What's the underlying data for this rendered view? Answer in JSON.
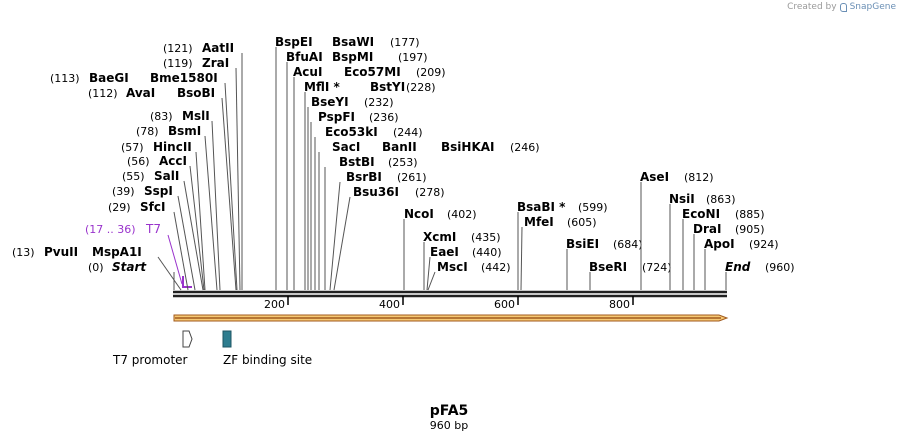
{
  "credit": {
    "prefix": "Created by",
    "brand": "SnapGene"
  },
  "sequence": {
    "name": "pFA5",
    "length_label": "960 bp",
    "length": 960
  },
  "axis_ticks": [
    "200",
    "400",
    "600",
    "800"
  ],
  "primer": {
    "name": "T7",
    "range": "(17 .. 36)",
    "color": "#9933cc"
  },
  "features": [
    {
      "name": "T7 promoter",
      "type": "promoter"
    },
    {
      "name": "ZF binding site",
      "type": "misc",
      "color": "#2e7d8f"
    }
  ],
  "colors": {
    "orf_fill": "#f6c873",
    "orf_stroke": "#a05a1e",
    "backbone": "#222222"
  },
  "enzymes": [
    {
      "pos": "(0)",
      "name": "Start",
      "italic": true
    },
    {
      "pos": "(13)",
      "name": "PvuII",
      "name2": "MspA1I"
    },
    {
      "pos": "(29)",
      "name": "SfcI"
    },
    {
      "pos": "(39)",
      "name": "SspI"
    },
    {
      "pos": "(55)",
      "name": "SalI"
    },
    {
      "pos": "(56)",
      "name": "AccI"
    },
    {
      "pos": "(57)",
      "name": "HincII"
    },
    {
      "pos": "(78)",
      "name": "BsmI"
    },
    {
      "pos": "(83)",
      "name": "MslI"
    },
    {
      "pos": "(112)",
      "name": "AvaI",
      "name2": "BsoBI"
    },
    {
      "pos": "(113)",
      "name": "BaeGI",
      "name2": "Bme1580I"
    },
    {
      "pos": "(119)",
      "name": "ZraI"
    },
    {
      "pos": "(121)",
      "name": "AatII"
    },
    {
      "pos": "(177)",
      "name": "BspEI",
      "name2": "BsaWI"
    },
    {
      "pos": "(197)",
      "name": "BfuAI",
      "name2": "BspMI"
    },
    {
      "pos": "(209)",
      "name": "AcuI",
      "name2": "Eco57MI"
    },
    {
      "pos": "(228)",
      "name": "MflI *",
      "name2": "BstYI"
    },
    {
      "pos": "(232)",
      "name": "BseYI"
    },
    {
      "pos": "(236)",
      "name": "PspFI"
    },
    {
      "pos": "(244)",
      "name": "Eco53kI"
    },
    {
      "pos": "(246)",
      "name": "SacI",
      "name2": "BanII",
      "name3": "BsiHKAI"
    },
    {
      "pos": "(253)",
      "name": "BstBI"
    },
    {
      "pos": "(261)",
      "name": "BsrBI"
    },
    {
      "pos": "(278)",
      "name": "Bsu36I"
    },
    {
      "pos": "(402)",
      "name": "NcoI"
    },
    {
      "pos": "(435)",
      "name": "XcmI"
    },
    {
      "pos": "(440)",
      "name": "EaeI"
    },
    {
      "pos": "(442)",
      "name": "MscI"
    },
    {
      "pos": "(599)",
      "name": "BsaBI *"
    },
    {
      "pos": "(605)",
      "name": "MfeI"
    },
    {
      "pos": "(684)",
      "name": "BsiEI"
    },
    {
      "pos": "(724)",
      "name": "BseRI"
    },
    {
      "pos": "(812)",
      "name": "AseI"
    },
    {
      "pos": "(863)",
      "name": "NsiI"
    },
    {
      "pos": "(885)",
      "name": "EcoNI"
    },
    {
      "pos": "(905)",
      "name": "DraI"
    },
    {
      "pos": "(924)",
      "name": "ApoI"
    },
    {
      "pos": "(960)",
      "name": "End",
      "italic": true
    }
  ]
}
